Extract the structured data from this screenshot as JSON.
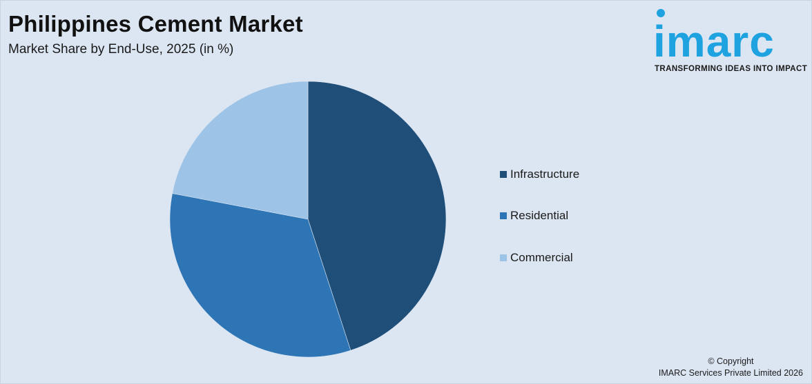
{
  "header": {
    "title": "Philippines Cement Market",
    "subtitle": "Market Share by End-Use, 2025 (in %)"
  },
  "logo": {
    "wordmark": "imarc",
    "tagline": "TRANSFORMING IDEAS INTO IMPACT",
    "color": "#1fa2e0"
  },
  "chart_data": {
    "type": "pie",
    "title": "Philippines Cement Market",
    "subtitle": "Market Share by End-Use, 2025 (in %)",
    "legend_position": "right",
    "start_angle_deg": 0,
    "direction": "clockwise",
    "slices": [
      {
        "name": "Infrastructure",
        "value": 45,
        "color": "#1f4e79"
      },
      {
        "name": "Residential",
        "value": 33,
        "color": "#2e75b6"
      },
      {
        "name": "Commercial",
        "value": 22,
        "color": "#9dc3e6"
      }
    ]
  },
  "footer": {
    "copyright_line1": "© Copyright",
    "copyright_line2": "IMARC Services Private Limited 2026"
  }
}
